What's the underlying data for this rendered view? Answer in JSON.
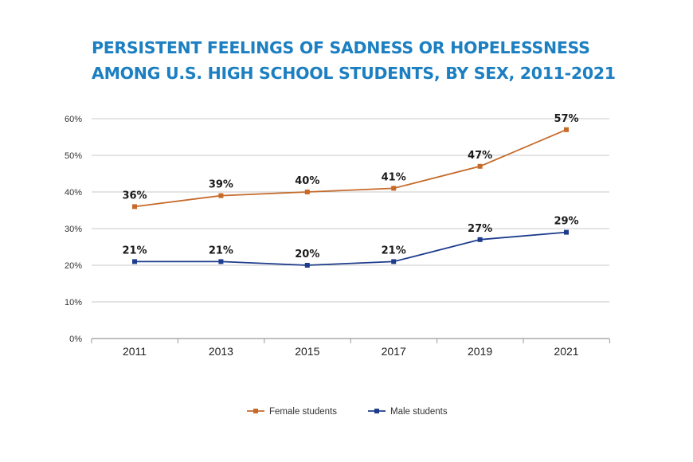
{
  "chart_data": {
    "type": "line",
    "title_lines": [
      "PERSISTENT FEELINGS OF SADNESS OR HOPELESSNESS",
      "AMONG U.S. HIGH SCHOOL STUDENTS, BY SEX, 2011-2021"
    ],
    "categories": [
      "2011",
      "2013",
      "2015",
      "2017",
      "2019",
      "2021"
    ],
    "ylim": [
      0,
      60
    ],
    "yticks": [
      0,
      10,
      20,
      30,
      40,
      50,
      60
    ],
    "ytick_labels": [
      "0%",
      "10%",
      "20%",
      "30%",
      "40%",
      "50%",
      "60%"
    ],
    "grid": true,
    "legend_position": "bottom",
    "series": [
      {
        "name": "Female students",
        "color": "#c66a2a",
        "values": [
          36,
          39,
          40,
          41,
          47,
          57
        ],
        "labels": [
          "36%",
          "39%",
          "40%",
          "41%",
          "47%",
          "57%"
        ]
      },
      {
        "name": "Male students",
        "color": "#1e3c8c",
        "values": [
          21,
          21,
          20,
          21,
          27,
          29
        ],
        "labels": [
          "21%",
          "21%",
          "20%",
          "21%",
          "27%",
          "29%"
        ]
      }
    ]
  }
}
